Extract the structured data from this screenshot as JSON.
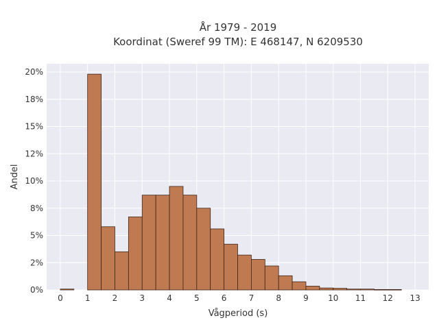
{
  "chart_data": {
    "type": "bar",
    "title": "År 1979 - 2019",
    "subtitle": "Koordinat (Sweref 99 TM): E 468147, N 6209530",
    "xlabel": "Vågperiod (s)",
    "ylabel": "Andel",
    "x_ticks": [
      "0",
      "1",
      "2",
      "3",
      "4",
      "5",
      "6",
      "7",
      "8",
      "9",
      "10",
      "11",
      "12",
      "13"
    ],
    "y_ticks": [
      "0%",
      "2%",
      "5%",
      "8%",
      "10%",
      "12%",
      "15%",
      "18%",
      "20%"
    ],
    "ylim": [
      0,
      0.2
    ],
    "xlim": [
      -0.5,
      13.5
    ],
    "bin_width": 0.5,
    "grid": true,
    "bins": [
      {
        "x0": 0.0,
        "value": 0.0008
      },
      {
        "x0": 1.0,
        "value": 0.198
      },
      {
        "x0": 1.5,
        "value": 0.058
      },
      {
        "x0": 2.0,
        "value": 0.035
      },
      {
        "x0": 2.5,
        "value": 0.067
      },
      {
        "x0": 3.0,
        "value": 0.087
      },
      {
        "x0": 3.5,
        "value": 0.087
      },
      {
        "x0": 4.0,
        "value": 0.095
      },
      {
        "x0": 4.5,
        "value": 0.087
      },
      {
        "x0": 5.0,
        "value": 0.075
      },
      {
        "x0": 5.5,
        "value": 0.056
      },
      {
        "x0": 6.0,
        "value": 0.042
      },
      {
        "x0": 6.5,
        "value": 0.032
      },
      {
        "x0": 7.0,
        "value": 0.028
      },
      {
        "x0": 7.5,
        "value": 0.022
      },
      {
        "x0": 8.0,
        "value": 0.013
      },
      {
        "x0": 8.5,
        "value": 0.0075
      },
      {
        "x0": 9.0,
        "value": 0.0035
      },
      {
        "x0": 9.5,
        "value": 0.0018
      },
      {
        "x0": 10.0,
        "value": 0.0015
      },
      {
        "x0": 10.5,
        "value": 0.0008
      },
      {
        "x0": 11.0,
        "value": 0.0008
      },
      {
        "x0": 11.5,
        "value": 0.0004
      },
      {
        "x0": 12.0,
        "value": 0.0004
      }
    ],
    "colors": {
      "bar_fill": "#c07a52",
      "bar_edge": "#3d2418",
      "plot_bg": "#eaeaf2",
      "grid": "#ffffff"
    }
  }
}
